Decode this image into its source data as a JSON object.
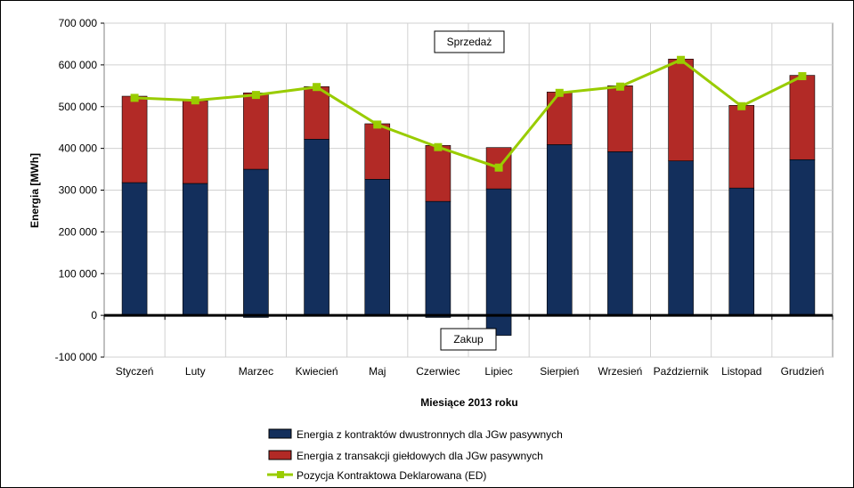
{
  "chart_data": {
    "type": "bar",
    "stacked": true,
    "categories": [
      "Styczeń",
      "Luty",
      "Marzec",
      "Kwiecień",
      "Maj",
      "Czerwiec",
      "Lipiec",
      "Sierpień",
      "Wrzesień",
      "Październik",
      "Listopad",
      "Grudzień"
    ],
    "series": [
      {
        "name": "Energia z kontraktów dwustronnych dla JGw pasywnych",
        "type": "bar",
        "color": "#132f5c",
        "values": [
          318000,
          316000,
          350000,
          422000,
          326000,
          273000,
          303000,
          409000,
          392000,
          370000,
          305000,
          373000
        ],
        "negative_values": [
          0,
          0,
          -5000,
          0,
          0,
          -5000,
          -48000,
          0,
          0,
          0,
          0,
          0
        ]
      },
      {
        "name": "Energia z transakcji giełdowych dla JGw pasywnych",
        "type": "bar",
        "color": "#b22a26",
        "values": [
          207000,
          198000,
          183000,
          126000,
          133000,
          134000,
          99000,
          126000,
          158000,
          244000,
          198000,
          202000
        ]
      },
      {
        "name": "Pozycja Kontraktowa Deklarowana (ED)",
        "type": "line",
        "color": "#99cc00",
        "values": [
          521000,
          515000,
          528000,
          547000,
          457000,
          403000,
          354000,
          533000,
          548000,
          612000,
          501000,
          573000
        ]
      }
    ],
    "xlabel": "Miesiące 2013  roku",
    "ylabel": "Energia  [MWh]",
    "ylim": [
      -100000,
      700000
    ],
    "yticks": [
      700000,
      600000,
      500000,
      400000,
      300000,
      200000,
      100000,
      0,
      -100000
    ],
    "ytick_labels": [
      "700 000",
      "600 000",
      "500 000",
      "400 000",
      "300 000",
      "200 000",
      "100 000",
      "0",
      "-100 000"
    ],
    "annotations": [
      "Sprzedaż",
      "Zakup"
    ],
    "grid": true,
    "legend_position": "bottom"
  }
}
